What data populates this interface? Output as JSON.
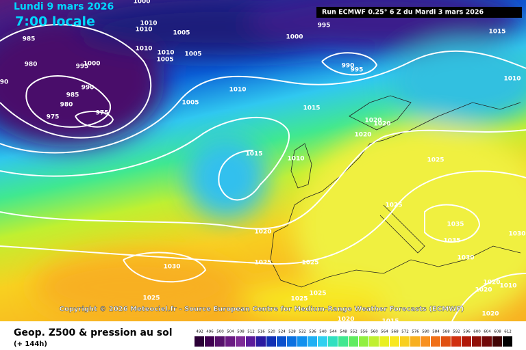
{
  "header": {
    "date": "Lundi 9 mars 2026",
    "time": "7:00 locale",
    "run": "Run ECMWF 0.25° 6 Z du Mardi 3 mars 2026"
  },
  "copyright": "Copyright © 2026 Meteociel.fr - Source European Centre for Medium-Range Weather Forecasts (ECMWF)",
  "footer": {
    "title": "Geop. Z500 & pression au sol",
    "lead": "(+ 144h)"
  },
  "isobar_labels": [
    "1000",
    "1010",
    "985",
    "1010",
    "1005",
    "1010",
    "1010",
    "1005",
    "1005",
    "995",
    "1000",
    "980",
    "990",
    "985",
    "980",
    "975",
    "975",
    "90",
    "995",
    "1000",
    "990",
    "995",
    "1015",
    "1010",
    "1010",
    "1005",
    "1015",
    "1020",
    "1020",
    "1020",
    "1015",
    "1010",
    "1025",
    "1025",
    "1035",
    "1035",
    "1030",
    "1030",
    "1020",
    "1025",
    "1025",
    "1030",
    "1025",
    "1025",
    "1025",
    "1020",
    "1020",
    "1020",
    "1010",
    "1020",
    "1015"
  ],
  "legend": {
    "values": [
      492,
      496,
      500,
      504,
      508,
      512,
      516,
      520,
      524,
      528,
      532,
      536,
      540,
      544,
      548,
      552,
      556,
      560,
      564,
      568,
      572,
      576,
      580,
      584,
      588,
      592,
      596,
      600,
      604,
      608,
      612
    ],
    "colors": [
      "#2b0036",
      "#3f0050",
      "#55106a",
      "#6a1a82",
      "#7d2a96",
      "#5a1a9a",
      "#2a1aa0",
      "#1030b4",
      "#0a50cc",
      "#0a70e0",
      "#1090ee",
      "#20b0f4",
      "#30d0f0",
      "#30e0c0",
      "#40e890",
      "#60ec60",
      "#90f040",
      "#c0f030",
      "#e8f020",
      "#f8e820",
      "#f8d020",
      "#f8b020",
      "#f89020",
      "#f07018",
      "#e05010",
      "#d03010",
      "#b01808",
      "#901008",
      "#700808",
      "#400404",
      "#000000"
    ]
  }
}
